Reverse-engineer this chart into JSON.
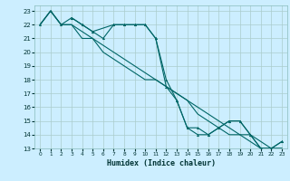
{
  "xlabel": "Humidex (Indice chaleur)",
  "bg_color": "#cceeff",
  "grid_color": "#aacccc",
  "line_color": "#006666",
  "xlim": [
    -0.5,
    23.5
  ],
  "ylim": [
    13,
    23.4
  ],
  "xticks": [
    0,
    1,
    2,
    3,
    4,
    5,
    6,
    7,
    8,
    9,
    10,
    11,
    12,
    13,
    14,
    15,
    16,
    17,
    18,
    19,
    20,
    21,
    22,
    23
  ],
  "yticks": [
    13,
    14,
    15,
    16,
    17,
    18,
    19,
    20,
    21,
    22,
    23
  ],
  "line1_x": [
    0,
    1,
    2,
    3,
    4,
    5,
    6,
    7,
    8,
    9,
    10,
    11,
    12,
    13,
    14,
    15,
    16,
    17,
    18,
    19,
    20,
    21,
    22,
    23
  ],
  "line1_y": [
    22,
    23,
    22,
    22,
    21.5,
    21,
    20.5,
    20,
    19.5,
    19,
    18.5,
    18,
    17.5,
    17,
    16.5,
    16,
    15.5,
    15,
    14.5,
    14,
    14,
    13.5,
    13,
    13
  ],
  "line2_x": [
    0,
    1,
    2,
    3,
    4,
    5,
    6,
    7,
    8,
    9,
    10,
    11,
    12,
    13,
    14,
    15,
    16,
    17,
    18,
    19,
    20,
    21,
    22,
    23
  ],
  "line2_y": [
    22,
    23,
    22,
    22,
    21,
    21,
    20,
    19.5,
    19,
    18.5,
    18,
    18,
    17.5,
    17,
    16.5,
    15.5,
    15,
    14.5,
    14,
    14,
    13.5,
    13,
    13,
    13
  ],
  "zigzag1_x": [
    0,
    1,
    2,
    3,
    4,
    5,
    7,
    8,
    9,
    10,
    11,
    12,
    13,
    14,
    15,
    16,
    17,
    18,
    19,
    20,
    21,
    22,
    23
  ],
  "zigzag1_y": [
    22,
    23,
    22,
    22.5,
    22,
    21.5,
    22,
    22,
    22,
    22,
    21,
    18,
    16.5,
    14.5,
    14.5,
    14,
    14.5,
    15,
    15,
    14,
    13,
    13,
    13.5
  ],
  "zigzag2_x": [
    3,
    4,
    5,
    6,
    7,
    8,
    9,
    10,
    11,
    12,
    13,
    14,
    15,
    16,
    17,
    18,
    19,
    20,
    21,
    22,
    23
  ],
  "zigzag2_y": [
    22.5,
    22,
    21.5,
    21,
    22,
    22,
    22,
    22,
    21,
    17.5,
    16.5,
    14.5,
    14,
    14,
    14.5,
    15,
    15,
    14,
    13,
    13,
    13.5
  ]
}
